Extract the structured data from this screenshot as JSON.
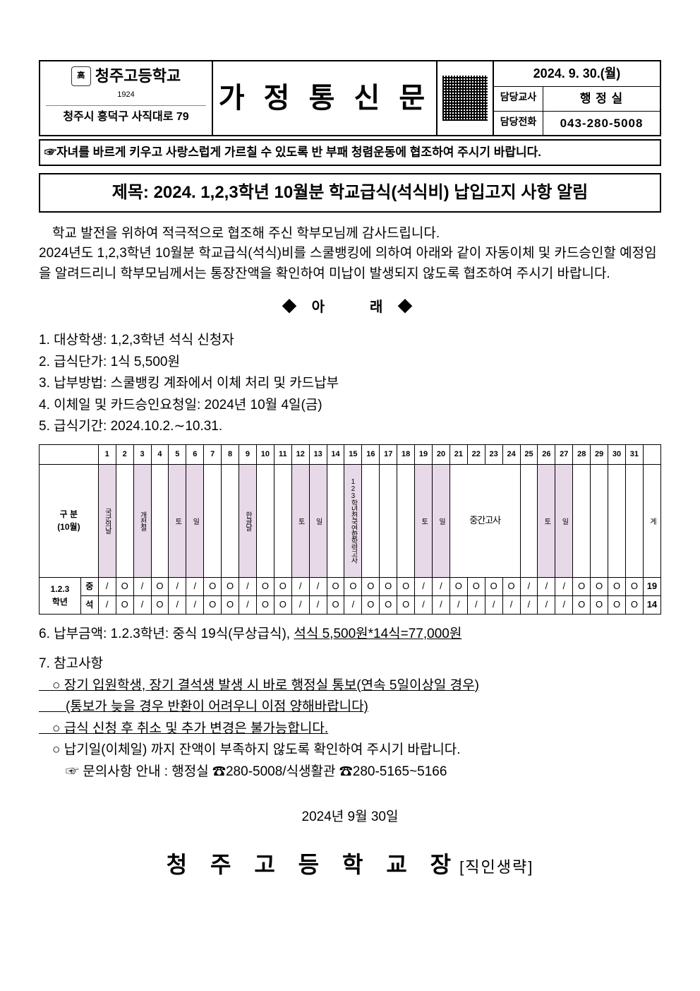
{
  "header": {
    "school_name": "청주고등학교",
    "school_year": "1924",
    "school_addr": "청주시 흥덕구 사직대로 79",
    "doc_type": "가 정 통 신 문",
    "date": "2024. 9. 30.(월)",
    "teacher_label": "담당교사",
    "teacher": "행 정 실",
    "phone_label": "담당전화",
    "phone": "043-280-5008"
  },
  "slogan": "☞자녀를 바르게 키우고 사랑스럽게 가르칠 수 있도록 반 부패 청렴운동에 협조하여 주시기 바랍니다.",
  "title": "제목: 2024. 1,2,3학년 10월분 학교급식(석식비) 납입고지 사항 알림",
  "intro1": "　학교 발전을 위하여 적극적으로 협조해 주신 학부모님께 감사드립니다.",
  "intro2": " 2024년도 1,2,3학년 10월분 학교급식(석식)비를 스쿨뱅킹에 의하여 아래와 같이 자동이체 및 카드승인할 예정임을 알려드리니 학부모님께서는 통장잔액을 확인하여 미납이 발생되지 않도록 협조하여 주시기 바랍니다.",
  "divider": "◆ 아　　래 ◆",
  "items": {
    "i1": "1. 대상학생: 1,2,3학년 석식 신청자",
    "i2": "2. 급식단가: 1식 5,500원",
    "i3": "3. 납부방법: 스쿨뱅킹 계좌에서 이체 처리 및 카드납부",
    "i4": "4. 이체일 및 카드승인요청일: 2024년 10월 4일(금)",
    "i5": "5. 급식기간: 2024.10.2.∼10.31."
  },
  "table": {
    "label": "구 분\n(10월)",
    "days": [
      "1",
      "2",
      "3",
      "4",
      "5",
      "6",
      "7",
      "8",
      "9",
      "10",
      "11",
      "12",
      "13",
      "14",
      "15",
      "16",
      "17",
      "18",
      "19",
      "20",
      "21",
      "22",
      "23",
      "24",
      "25",
      "26",
      "27",
      "28",
      "29",
      "30",
      "31",
      ""
    ],
    "notes": [
      {
        "text": "국군의날",
        "shade": true
      },
      {
        "text": "",
        "shade": false
      },
      {
        "text": "개천절",
        "shade": true
      },
      {
        "text": "",
        "shade": false
      },
      {
        "text": "토",
        "shade": true
      },
      {
        "text": "일",
        "shade": true
      },
      {
        "text": "",
        "shade": false
      },
      {
        "text": "",
        "shade": false
      },
      {
        "text": "한글날",
        "shade": true
      },
      {
        "text": "",
        "shade": false
      },
      {
        "text": "",
        "shade": false
      },
      {
        "text": "토",
        "shade": true
      },
      {
        "text": "일",
        "shade": true
      },
      {
        "text": "",
        "shade": false
      },
      {
        "text": "123학년전국연합학력고사",
        "shade": true
      },
      {
        "text": "",
        "shade": false
      },
      {
        "text": "",
        "shade": false
      },
      {
        "text": "",
        "shade": false
      },
      {
        "text": "토",
        "shade": true
      },
      {
        "text": "일",
        "shade": true
      },
      {
        "text": "",
        "shade": false,
        "exam": true,
        "span": 4,
        "examtext": "중간고사"
      },
      {
        "text": "",
        "shade": false
      },
      {
        "text": "토",
        "shade": true
      },
      {
        "text": "일",
        "shade": true
      },
      {
        "text": "",
        "shade": false
      },
      {
        "text": "",
        "shade": false
      },
      {
        "text": "",
        "shade": false
      },
      {
        "text": "",
        "shade": false
      },
      {
        "text": "계",
        "shade": false
      }
    ],
    "grade_label": "1.2.3\n학년",
    "lunch_label": "중",
    "dinner_label": "석",
    "lunch": [
      "x",
      "o",
      "x",
      "o",
      "x",
      "x",
      "o",
      "o",
      "x",
      "o",
      "o",
      "x",
      "x",
      "o",
      "o",
      "o",
      "o",
      "o",
      "x",
      "x",
      "o",
      "o",
      "o",
      "o",
      "x",
      "x",
      "x",
      "o",
      "o",
      "o",
      "o",
      "19"
    ],
    "dinner": [
      "x",
      "o",
      "x",
      "o",
      "x",
      "x",
      "o",
      "o",
      "x",
      "o",
      "o",
      "x",
      "x",
      "o",
      "x",
      "o",
      "o",
      "o",
      "x",
      "x",
      "x",
      "x",
      "x",
      "x",
      "x",
      "x",
      "x",
      "o",
      "o",
      "o",
      "o",
      "14"
    ]
  },
  "amount_prefix": "6. 납부금액: 1.2.3학년: 중식 19식(무상급식), ",
  "amount_underline": "석식 5,500원*14식=77,000원",
  "notes_title": "7. 참고사항",
  "note_a1": "　○ 장기 입원학생, 장기 결석생 발생 시 바로 행정실 통보(연속 5일이상일 경우)",
  "note_a2": "　　(통보가 늦을 경우 반환이 어려우니 이점 양해바랍니다)",
  "note_b": "　○ 급식 신청 후 취소 및 추가 변경은 불가능합니다.",
  "note_c": "　○ 납기일(이체일) 까지 잔액이 부족하지 않도록 확인하여 주시기 바랍니다.",
  "note_inquiry": "　　☞ 문의사항 안내 : 행정실 ☎280-5008/식생활관 ☎280-5165~5166",
  "footer_date": "2024년 9월 30일",
  "footer_signer": "청 주 고 등 학 교 장",
  "footer_seal": "[직인생략]"
}
